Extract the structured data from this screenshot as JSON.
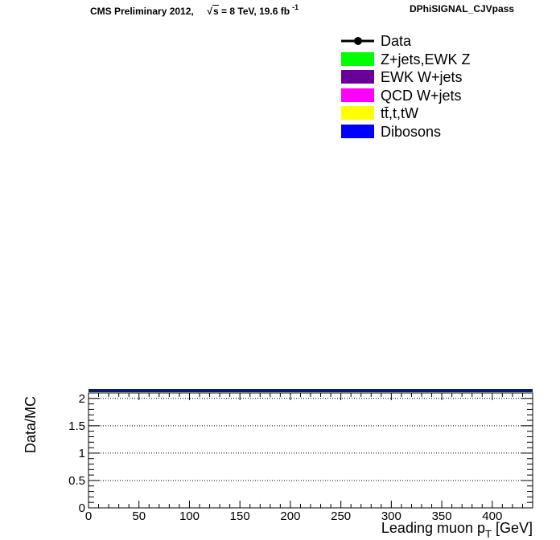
{
  "header": {
    "cms_prefix": "CMS Preliminary 2012,",
    "sqrt_symbol": "√",
    "sqrt_var": "s",
    "energy_text": "= 8 TeV, 19.6 fb",
    "exponent": "-1",
    "plot_name": "DPhiSIGNAL_CJVpass"
  },
  "legend": {
    "entries": [
      {
        "label": "Data",
        "kind": "marker",
        "color": "#000000"
      },
      {
        "label": "Z+jets,EWK Z",
        "kind": "fill",
        "color": "#00ff00"
      },
      {
        "label": "EWK W+jets",
        "kind": "fill",
        "color": "#660099"
      },
      {
        "label": "QCD W+jets",
        "kind": "fill",
        "color": "#ff00ff"
      },
      {
        "label": "tt̄,t,tW",
        "kind": "fill",
        "color": "#ffff00"
      },
      {
        "label": "Dibosons",
        "kind": "fill",
        "color": "#0000ff"
      }
    ]
  },
  "chart_data": {
    "type": "line",
    "title": "",
    "xlabel_main": "Leading muon p",
    "xlabel_sub": "T",
    "xlabel_unit": " [GeV]",
    "ylabel": "Data/MC",
    "xlim": [
      0,
      440
    ],
    "ylim": [
      0,
      2.1
    ],
    "x_ticks": [
      0,
      50,
      100,
      150,
      200,
      250,
      300,
      350,
      400
    ],
    "x_tick_labels": [
      "0",
      "50",
      "100",
      "150",
      "200",
      "250",
      "300",
      "350",
      "400"
    ],
    "y_ticks": [
      0,
      0.5,
      1,
      1.5,
      2
    ],
    "y_tick_labels": [
      "0",
      "0.5",
      "1",
      "1.5",
      "2"
    ],
    "y_gridlines": [
      0.5,
      1,
      1.5,
      2
    ],
    "grid": "horizontal dotted",
    "series": [],
    "upper_panel_line_color": "#0a1a6e"
  }
}
